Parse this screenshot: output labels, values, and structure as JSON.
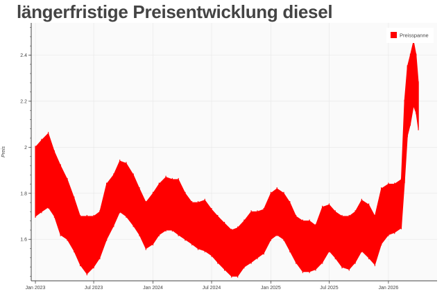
{
  "chart_data": {
    "type": "area",
    "title": "längerfristige Preisentwicklung diesel",
    "xlabel": "",
    "ylabel": "Preis",
    "xlim": [
      "2022-12-19",
      "2026-06-01"
    ],
    "ylim": [
      1.42,
      2.54
    ],
    "grid": true,
    "legend_position": "top-right",
    "x_ticks": [
      {
        "date": "2023-01-01",
        "label": "Jan 2023"
      },
      {
        "date": "2023-07-01",
        "label": "Jul 2023"
      },
      {
        "date": "2024-01-01",
        "label": "Jan 2024"
      },
      {
        "date": "2024-07-01",
        "label": "Jul 2024"
      },
      {
        "date": "2025-01-01",
        "label": "Jan 2025"
      },
      {
        "date": "2025-07-01",
        "label": "Jul 2025"
      },
      {
        "date": "2026-01-01",
        "label": "Jan 2026"
      }
    ],
    "y_ticks": [
      {
        "value": 1.6,
        "label": "1.6"
      },
      {
        "value": 1.8,
        "label": "1.8"
      },
      {
        "value": 2.0,
        "label": "2"
      },
      {
        "value": 2.2,
        "label": "2.2"
      },
      {
        "value": 2.4,
        "label": "2.4"
      }
    ],
    "series": [
      {
        "name": "Preisspanne",
        "color": "#ff0000",
        "points": [
          [
            "2023-01-01",
            1.7,
            2.0
          ],
          [
            "2023-01-20",
            1.72,
            2.03
          ],
          [
            "2023-02-10",
            1.74,
            2.06
          ],
          [
            "2023-03-01",
            1.7,
            1.98
          ],
          [
            "2023-03-20",
            1.62,
            1.92
          ],
          [
            "2023-04-10",
            1.6,
            1.86
          ],
          [
            "2023-05-01",
            1.55,
            1.78
          ],
          [
            "2023-05-20",
            1.49,
            1.7
          ],
          [
            "2023-06-10",
            1.45,
            1.7
          ],
          [
            "2023-07-01",
            1.48,
            1.7
          ],
          [
            "2023-07-20",
            1.52,
            1.72
          ],
          [
            "2023-08-10",
            1.6,
            1.84
          ],
          [
            "2023-09-01",
            1.66,
            1.88
          ],
          [
            "2023-09-20",
            1.72,
            1.94
          ],
          [
            "2023-10-10",
            1.7,
            1.93
          ],
          [
            "2023-11-01",
            1.66,
            1.88
          ],
          [
            "2023-11-20",
            1.62,
            1.82
          ],
          [
            "2023-12-10",
            1.56,
            1.76
          ],
          [
            "2024-01-01",
            1.58,
            1.8
          ],
          [
            "2024-01-20",
            1.62,
            1.84
          ],
          [
            "2024-02-10",
            1.64,
            1.87
          ],
          [
            "2024-03-01",
            1.64,
            1.86
          ],
          [
            "2024-03-20",
            1.62,
            1.86
          ],
          [
            "2024-04-10",
            1.6,
            1.8
          ],
          [
            "2024-05-01",
            1.58,
            1.76
          ],
          [
            "2024-05-20",
            1.56,
            1.76
          ],
          [
            "2024-06-10",
            1.55,
            1.77
          ],
          [
            "2024-07-01",
            1.53,
            1.73
          ],
          [
            "2024-07-20",
            1.5,
            1.7
          ],
          [
            "2024-08-10",
            1.47,
            1.67
          ],
          [
            "2024-09-01",
            1.44,
            1.64
          ],
          [
            "2024-09-20",
            1.44,
            1.65
          ],
          [
            "2024-10-10",
            1.48,
            1.68
          ],
          [
            "2024-11-01",
            1.5,
            1.72
          ],
          [
            "2024-11-20",
            1.52,
            1.72
          ],
          [
            "2024-12-10",
            1.54,
            1.73
          ],
          [
            "2025-01-01",
            1.6,
            1.8
          ],
          [
            "2025-01-20",
            1.62,
            1.82
          ],
          [
            "2025-02-10",
            1.6,
            1.8
          ],
          [
            "2025-03-01",
            1.55,
            1.76
          ],
          [
            "2025-03-20",
            1.5,
            1.7
          ],
          [
            "2025-04-10",
            1.46,
            1.68
          ],
          [
            "2025-05-01",
            1.46,
            1.68
          ],
          [
            "2025-05-20",
            1.47,
            1.66
          ],
          [
            "2025-06-10",
            1.5,
            1.74
          ],
          [
            "2025-07-01",
            1.55,
            1.75
          ],
          [
            "2025-07-20",
            1.52,
            1.72
          ],
          [
            "2025-08-10",
            1.48,
            1.7
          ],
          [
            "2025-09-01",
            1.47,
            1.7
          ],
          [
            "2025-09-20",
            1.5,
            1.72
          ],
          [
            "2025-10-10",
            1.55,
            1.77
          ],
          [
            "2025-11-01",
            1.52,
            1.75
          ],
          [
            "2025-11-20",
            1.49,
            1.7
          ],
          [
            "2025-12-10",
            1.58,
            1.82
          ],
          [
            "2026-01-01",
            1.62,
            1.84
          ],
          [
            "2026-01-20",
            1.63,
            1.84
          ],
          [
            "2026-02-10",
            1.65,
            1.86
          ],
          [
            "2026-02-20",
            1.85,
            2.2
          ],
          [
            "2026-03-01",
            2.05,
            2.35
          ],
          [
            "2026-03-10",
            2.1,
            2.4
          ],
          [
            "2026-03-20",
            2.18,
            2.46
          ],
          [
            "2026-03-28",
            2.15,
            2.4
          ],
          [
            "2026-04-04",
            2.08,
            2.28
          ]
        ]
      }
    ]
  }
}
